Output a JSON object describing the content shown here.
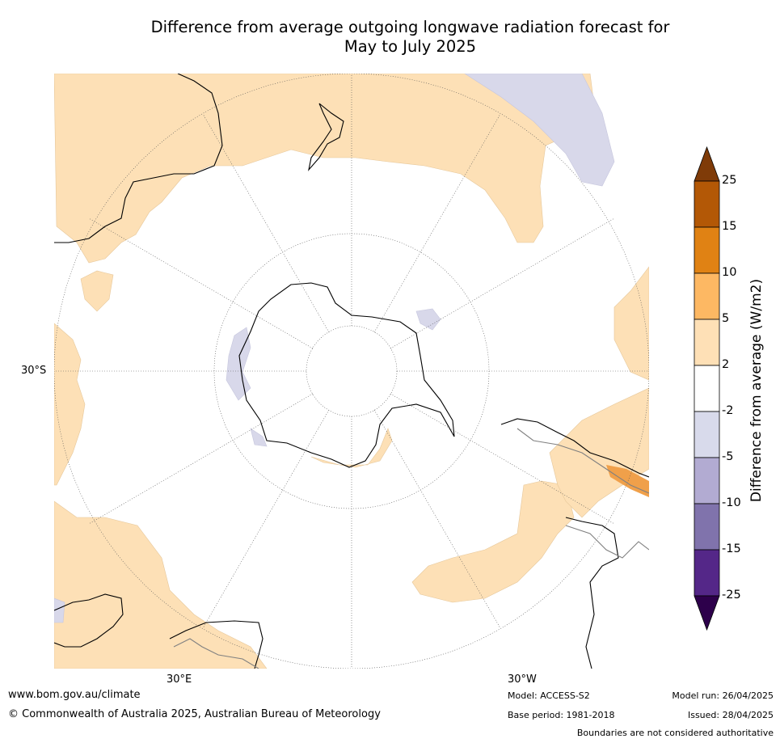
{
  "title": {
    "line1": "Difference from average outgoing longwave radiation forecast for",
    "line2": "May to July 2025"
  },
  "map": {
    "projection": "south-polar-stereographic",
    "latitude_label": "30°S",
    "longitude_labels": {
      "bottom_left": "30°E",
      "bottom_right": "30°W"
    },
    "colors": {
      "anomaly_2_to_5": "#fde0b6",
      "anomaly_minus2_to_minus5": "#d8d8ea",
      "anomaly_5_to_10": "#f0a04a",
      "coastline": "#000000",
      "border": "#808080"
    }
  },
  "colorbar": {
    "title": "Difference from average (W/m2)",
    "ticks": [
      "25",
      "15",
      "10",
      "5",
      "2",
      "-2",
      "-5",
      "-10",
      "-15",
      "-25"
    ],
    "bins": [
      {
        "from": 15,
        "to": 25,
        "color": "#b35806"
      },
      {
        "from": 10,
        "to": 15,
        "color": "#e08214"
      },
      {
        "from": 5,
        "to": 10,
        "color": "#fdb863"
      },
      {
        "from": 2,
        "to": 5,
        "color": "#fee0b6"
      },
      {
        "from": -2,
        "to": 2,
        "color": "#ffffff"
      },
      {
        "from": -5,
        "to": -2,
        "color": "#d8daeb"
      },
      {
        "from": -10,
        "to": -5,
        "color": "#b2abd2"
      },
      {
        "from": -15,
        "to": -10,
        "color": "#8073ac"
      },
      {
        "from": -25,
        "to": -15,
        "color": "#542788"
      }
    ],
    "extend_max_color": "#7f3b08",
    "extend_min_color": "#2d004b"
  },
  "footer": {
    "website": "www.bom.gov.au/climate",
    "copyright": "© Commonwealth of Australia 2025, Australian Bureau of Meteorology",
    "model": "Model: ACCESS-S2",
    "base_period": "Base period: 1981-2018",
    "model_run": "Model run: 26/04/2025",
    "issued": "Issued: 28/04/2025",
    "disclaimer": "Boundaries are not considered authoritative"
  }
}
